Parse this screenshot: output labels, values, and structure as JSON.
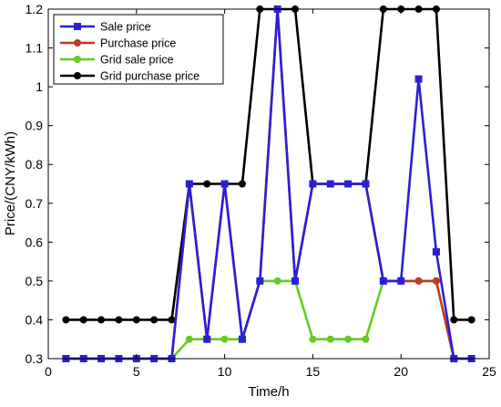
{
  "chart_data": {
    "type": "line",
    "xlabel": "Time/h",
    "ylabel": "Price/(CNY/kWh)",
    "xlim": [
      0,
      25
    ],
    "ylim": [
      0.3,
      1.2
    ],
    "xticks": [
      0,
      5,
      10,
      15,
      20,
      25
    ],
    "xtick_labels": [
      "0",
      "5",
      "10",
      "15",
      "20",
      "25"
    ],
    "yticks": [
      0.3,
      0.4,
      0.5,
      0.6,
      0.7,
      0.8,
      0.9,
      1.0,
      1.1,
      1.2
    ],
    "ytick_labels": [
      "0.3",
      "0.4",
      "0.5",
      "0.6",
      "0.7",
      "0.8",
      "0.9",
      "1",
      "1.1",
      "1.2"
    ],
    "grid": false,
    "legend_position": "top-left",
    "x": [
      1,
      2,
      3,
      4,
      5,
      6,
      7,
      8,
      9,
      10,
      11,
      12,
      13,
      14,
      15,
      16,
      17,
      18,
      19,
      20,
      21,
      22,
      23,
      24
    ],
    "series": [
      {
        "name": "Sale price",
        "color": "#2b1fd6",
        "marker": "square",
        "values": [
          0.3,
          0.3,
          0.3,
          0.3,
          0.3,
          0.3,
          0.3,
          0.75,
          0.35,
          0.75,
          0.35,
          0.5,
          1.2,
          0.5,
          0.75,
          0.75,
          0.75,
          0.75,
          0.5,
          0.5,
          1.02,
          0.575,
          0.3,
          0.3
        ]
      },
      {
        "name": "Purchase price",
        "color": "#c0392b",
        "marker": "circle",
        "values": [
          0.3,
          0.3,
          0.3,
          0.3,
          0.3,
          0.3,
          0.3,
          0.75,
          0.35,
          0.75,
          0.35,
          0.5,
          1.2,
          0.5,
          0.75,
          0.75,
          0.75,
          0.75,
          0.5,
          0.5,
          0.5,
          0.5,
          0.3,
          0.3
        ]
      },
      {
        "name": "Grid sale price",
        "color": "#66cc22",
        "marker": "circle",
        "values": [
          0.3,
          0.3,
          0.3,
          0.3,
          0.3,
          0.3,
          0.3,
          0.35,
          0.35,
          0.35,
          0.35,
          0.5,
          0.5,
          0.5,
          0.35,
          0.35,
          0.35,
          0.35,
          0.5,
          0.5,
          0.5,
          0.5,
          0.3,
          0.3
        ]
      },
      {
        "name": "Grid purchase price",
        "color": "#000000",
        "marker": "circle",
        "values": [
          0.4,
          0.4,
          0.4,
          0.4,
          0.4,
          0.4,
          0.4,
          0.75,
          0.75,
          0.75,
          0.75,
          1.2,
          1.2,
          1.2,
          0.75,
          0.75,
          0.75,
          0.75,
          1.2,
          1.2,
          1.2,
          1.2,
          0.4,
          0.4
        ]
      }
    ]
  }
}
